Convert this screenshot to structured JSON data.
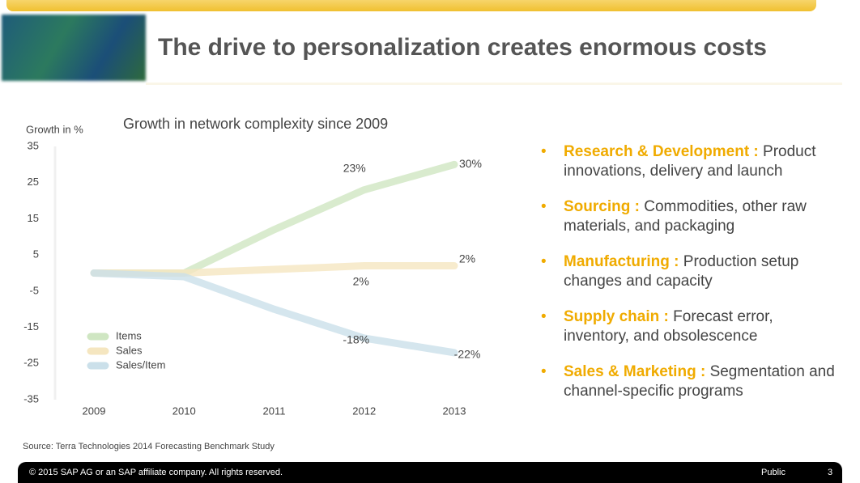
{
  "header": {
    "title": "The drive to personalization creates enormous costs"
  },
  "chart_data": {
    "type": "line",
    "title": "Growth in network complexity since 2009",
    "y_label": "Growth in %",
    "categories": [
      "2009",
      "2010",
      "2011",
      "2012",
      "2013"
    ],
    "series": [
      {
        "name": "Items",
        "color": "#cfe6c2",
        "values": [
          0,
          0,
          12,
          23,
          30
        ],
        "value_labels": [
          null,
          null,
          null,
          "23%",
          "30%"
        ]
      },
      {
        "name": "Sales",
        "color": "#f5e6c0",
        "values": [
          0,
          0,
          1,
          2,
          2
        ],
        "value_labels": [
          null,
          null,
          null,
          "2%",
          "2%"
        ]
      },
      {
        "name": "Sales/Item",
        "color": "#cbe0ea",
        "values": [
          0,
          -1,
          -10,
          -18,
          -22
        ],
        "value_labels": [
          null,
          null,
          null,
          "-18%",
          "-22%"
        ]
      }
    ],
    "ylim": [
      -35,
      35
    ],
    "yticks": [
      35,
      25,
      15,
      5,
      -5,
      -15,
      -25,
      -35
    ]
  },
  "bullets": [
    {
      "heading": "Research & Development :",
      "text": "Product innovations, delivery and launch"
    },
    {
      "heading": "Sourcing :",
      "text": "Commodities, other raw materials, and packaging"
    },
    {
      "heading": "Manufacturing :",
      "text": "Production setup changes and capacity"
    },
    {
      "heading": "Supply chain :",
      "text": "Forecast error, inventory, and obsolescence"
    },
    {
      "heading": "Sales & Marketing :",
      "text": "Segmentation and  channel-specific programs"
    }
  ],
  "source": "Source: Terra Technologies 2014 Forecasting Benchmark Study",
  "footer": {
    "copyright": "© 2015 SAP AG or an SAP affiliate company. All rights reserved.",
    "classification": "Public",
    "page": "3"
  }
}
